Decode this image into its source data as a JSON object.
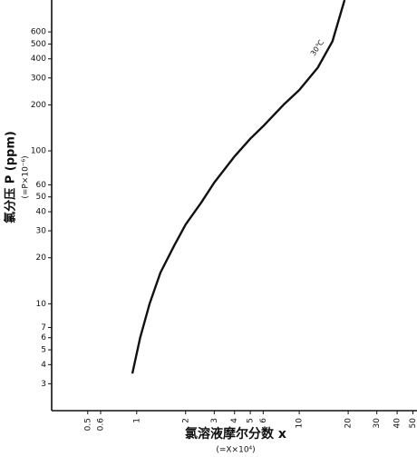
{
  "chart_data": {
    "type": "line",
    "x_label": "氯溶液摩尔分数 x",
    "x_label_note": "(=X×10⁴)",
    "y_label": "氯分压 P (ppm)",
    "y_label_note": "(=P×10⁻⁶)",
    "x": [
      0.94,
      1.05,
      1.2,
      1.4,
      1.7,
      2,
      2.5,
      3,
      4,
      5,
      6,
      8,
      10,
      13,
      16,
      19
    ],
    "series": [
      {
        "name": "30℃",
        "color": "#111111",
        "values": [
          3.5,
          6,
          10,
          16,
          24,
          33,
          46,
          62,
          92,
          120,
          145,
          200,
          250,
          350,
          520,
          970
        ]
      }
    ],
    "xscale": "log",
    "yscale": "log",
    "xlim": [
      0.3,
      53
    ],
    "ylim": [
      2,
      970
    ],
    "xticks": [
      0.5,
      0.6,
      1,
      2,
      3,
      4,
      5,
      6,
      10,
      20,
      30,
      40,
      50
    ],
    "yticks": [
      3,
      4,
      5,
      6,
      7,
      10,
      20,
      30,
      40,
      50,
      60,
      100,
      200,
      300,
      400,
      500,
      600
    ],
    "grid": false
  }
}
